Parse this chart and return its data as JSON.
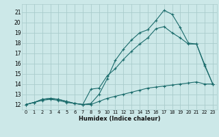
{
  "xlabel": "Humidex (Indice chaleur)",
  "bg_color": "#cce8e8",
  "grid_color": "#aacccc",
  "line_color": "#1a6b6b",
  "xlim": [
    -0.5,
    23.5
  ],
  "ylim": [
    11.5,
    21.8
  ],
  "xticks": [
    0,
    1,
    2,
    3,
    4,
    5,
    6,
    7,
    8,
    9,
    10,
    11,
    12,
    13,
    14,
    15,
    16,
    17,
    18,
    19,
    20,
    21,
    22,
    23
  ],
  "yticks": [
    12,
    13,
    14,
    15,
    16,
    17,
    18,
    19,
    20,
    21
  ],
  "series": [
    {
      "x": [
        0,
        1,
        2,
        3,
        4,
        5,
        6,
        7,
        8,
        9,
        10,
        11,
        12,
        13,
        14,
        15,
        16,
        17,
        18,
        19,
        20,
        21,
        22,
        23
      ],
      "y": [
        12,
        12.2,
        12.5,
        12.6,
        12.5,
        12.3,
        12.1,
        12.0,
        12.1,
        13.0,
        14.5,
        16.3,
        17.4,
        18.3,
        19.0,
        19.3,
        20.2,
        21.2,
        20.8,
        19.5,
        18.0,
        17.9,
        15.8,
        14.0
      ]
    },
    {
      "x": [
        0,
        1,
        2,
        3,
        4,
        5,
        6,
        7,
        8,
        9,
        10,
        11,
        12,
        13,
        14,
        15,
        16,
        17,
        18,
        19,
        20,
        21,
        22,
        23
      ],
      "y": [
        12,
        12.2,
        12.5,
        12.6,
        12.5,
        12.3,
        12.1,
        12.0,
        13.5,
        13.6,
        14.8,
        15.5,
        16.4,
        17.2,
        17.9,
        18.5,
        19.4,
        19.6,
        19.0,
        18.5,
        17.9,
        17.9,
        15.9,
        14.0
      ]
    },
    {
      "x": [
        0,
        1,
        2,
        3,
        4,
        5,
        6,
        7,
        8,
        9,
        10,
        11,
        12,
        13,
        14,
        15,
        16,
        17,
        18,
        19,
        20,
        21,
        22,
        23
      ],
      "y": [
        12,
        12.2,
        12.4,
        12.5,
        12.4,
        12.2,
        12.1,
        12.0,
        12.0,
        12.3,
        12.6,
        12.8,
        13.0,
        13.2,
        13.4,
        13.6,
        13.7,
        13.8,
        13.9,
        14.0,
        14.1,
        14.2,
        14.0,
        14.0
      ]
    }
  ]
}
